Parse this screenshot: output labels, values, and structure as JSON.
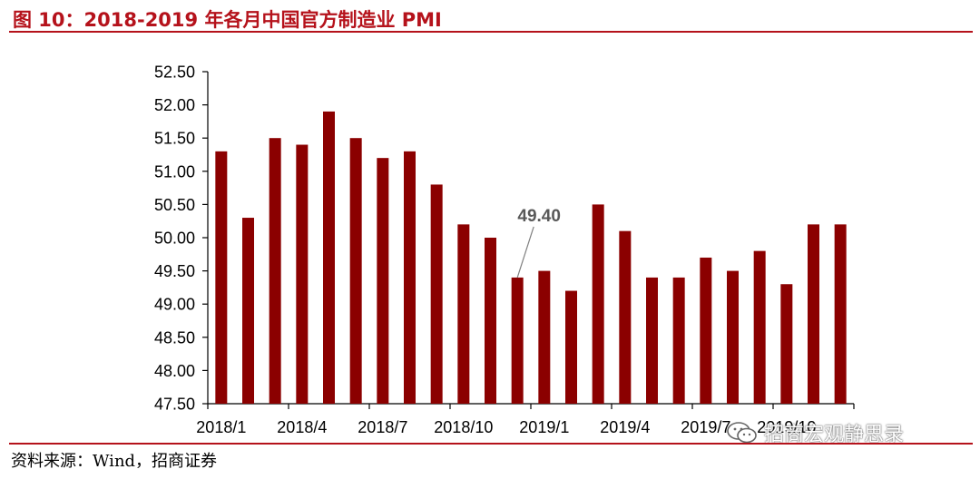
{
  "header": {
    "title": "图 10：2018-2019 年各月中国官方制造业 PMI"
  },
  "footer": {
    "source": "资料来源：Wind，招商证券"
  },
  "watermark": {
    "text": "招商宏观静思录"
  },
  "colors": {
    "bar": "#8b0000",
    "title": "#b5121b",
    "annotation": "#595959"
  },
  "chart_data": {
    "type": "bar",
    "title": "2018-2019 年各月中国官方制造业 PMI",
    "xlabel": "",
    "ylabel": "",
    "ylim": [
      47.5,
      52.5
    ],
    "yticks": [
      47.5,
      48.0,
      48.5,
      49.0,
      49.5,
      50.0,
      50.5,
      51.0,
      51.5,
      52.0,
      52.5
    ],
    "ytick_labels": [
      "47.50",
      "48.00",
      "48.50",
      "49.00",
      "49.50",
      "50.00",
      "50.50",
      "51.00",
      "51.50",
      "52.00",
      "52.50"
    ],
    "categories": [
      "2018/1",
      "2018/2",
      "2018/3",
      "2018/4",
      "2018/5",
      "2018/6",
      "2018/7",
      "2018/8",
      "2018/9",
      "2018/10",
      "2018/11",
      "2018/12",
      "2019/1",
      "2019/2",
      "2019/3",
      "2019/4",
      "2019/5",
      "2019/6",
      "2019/7",
      "2019/8",
      "2019/9",
      "2019/10",
      "2019/11",
      "2019/12"
    ],
    "xtick_labels": [
      "2018/1",
      "",
      "",
      "2018/4",
      "",
      "",
      "2018/7",
      "",
      "",
      "2018/10",
      "",
      "",
      "2019/1",
      "",
      "",
      "2019/4",
      "",
      "",
      "2019/7",
      "",
      "",
      "2019/10",
      "",
      ""
    ],
    "values": [
      51.3,
      50.3,
      51.5,
      51.4,
      51.9,
      51.5,
      51.2,
      51.3,
      50.8,
      50.2,
      50.0,
      49.4,
      49.5,
      49.2,
      50.5,
      50.1,
      49.4,
      49.4,
      49.7,
      49.5,
      49.8,
      49.3,
      50.2,
      50.2
    ],
    "annotation": {
      "category": "2018/12",
      "value": 49.4,
      "text": "49.40"
    },
    "grid": false,
    "legend": "none"
  }
}
